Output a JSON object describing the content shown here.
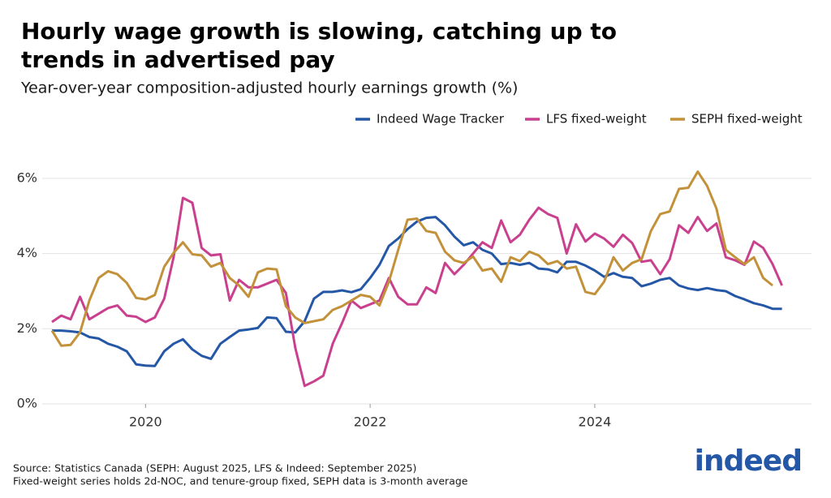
{
  "chart_data": {
    "type": "line",
    "title": "Hourly wage growth is slowing, catching up to",
    "title_line2": "trends in advertised pay",
    "subtitle": "Year-over-year composition-adjusted hourly earnings growth (%)",
    "source": "Source: Statistics Canada (SEPH: August 2025, LFS & Indeed: September 2025)",
    "note": "Fixed-weight series holds 2d-NOC, and tenure-group fixed, SEPH  data is 3-month average",
    "logo": "indeed",
    "x": [
      2019.167,
      2019.25,
      2019.333,
      2019.417,
      2019.5,
      2019.583,
      2019.667,
      2019.75,
      2019.833,
      2019.917,
      2020.0,
      2020.083,
      2020.167,
      2020.25,
      2020.333,
      2020.417,
      2020.5,
      2020.583,
      2020.667,
      2020.75,
      2020.833,
      2020.917,
      2021.0,
      2021.083,
      2021.167,
      2021.25,
      2021.333,
      2021.417,
      2021.5,
      2021.583,
      2021.667,
      2021.75,
      2021.833,
      2021.917,
      2022.0,
      2022.083,
      2022.167,
      2022.25,
      2022.333,
      2022.417,
      2022.5,
      2022.583,
      2022.667,
      2022.75,
      2022.833,
      2022.917,
      2023.0,
      2023.083,
      2023.167,
      2023.25,
      2023.333,
      2023.417,
      2023.5,
      2023.583,
      2023.667,
      2023.75,
      2023.833,
      2023.917,
      2024.0,
      2024.083,
      2024.167,
      2024.25,
      2024.333,
      2024.417,
      2024.5,
      2024.583,
      2024.667,
      2024.75,
      2024.833,
      2024.917,
      2025.0,
      2025.083,
      2025.167,
      2025.25,
      2025.333,
      2025.417,
      2025.5,
      2025.583,
      2025.667
    ],
    "series": [
      {
        "name": "Indeed Wage Tracker",
        "color": "#2557a7",
        "values": [
          1.95,
          1.95,
          1.93,
          1.9,
          1.78,
          1.74,
          1.6,
          1.52,
          1.4,
          1.05,
          1.02,
          1.01,
          1.4,
          1.6,
          1.72,
          1.45,
          1.28,
          1.2,
          1.6,
          1.78,
          1.95,
          1.98,
          2.02,
          2.3,
          2.28,
          1.92,
          1.9,
          2.2,
          2.8,
          2.98,
          2.98,
          3.02,
          2.97,
          3.05,
          3.35,
          3.7,
          4.2,
          4.4,
          4.65,
          4.85,
          4.95,
          4.97,
          4.75,
          4.45,
          4.22,
          4.3,
          4.1,
          4.0,
          3.72,
          3.75,
          3.7,
          3.75,
          3.6,
          3.58,
          3.5,
          3.78,
          3.78,
          3.68,
          3.55,
          3.38,
          3.48,
          3.38,
          3.35,
          3.13,
          3.2,
          3.3,
          3.35,
          3.15,
          3.07,
          3.03,
          3.08,
          3.03,
          3.0,
          2.87,
          2.78,
          2.68,
          2.62,
          2.53,
          2.53
        ]
      },
      {
        "name": "LFS fixed-weight",
        "color": "#c9408e",
        "values": [
          2.18,
          2.35,
          2.25,
          2.85,
          2.25,
          2.4,
          2.55,
          2.62,
          2.35,
          2.32,
          2.18,
          2.3,
          2.8,
          3.9,
          5.48,
          5.35,
          4.15,
          3.95,
          3.98,
          2.75,
          3.3,
          3.1,
          3.1,
          3.2,
          3.3,
          2.95,
          1.5,
          0.48,
          0.6,
          0.75,
          1.6,
          2.15,
          2.75,
          2.55,
          2.65,
          2.75,
          3.35,
          2.85,
          2.65,
          2.65,
          3.1,
          2.95,
          3.75,
          3.45,
          3.7,
          4.0,
          4.3,
          4.15,
          4.88,
          4.3,
          4.5,
          4.9,
          5.22,
          5.05,
          4.95,
          4.0,
          4.78,
          4.32,
          4.53,
          4.4,
          4.18,
          4.5,
          4.28,
          3.78,
          3.82,
          3.45,
          3.85,
          4.75,
          4.55,
          4.97,
          4.6,
          4.8,
          3.9,
          3.82,
          3.7,
          4.32,
          4.15,
          3.72,
          3.15
        ]
      },
      {
        "name": "SEPH fixed-weight",
        "color": "#c2913a",
        "values": [
          1.95,
          1.55,
          1.57,
          1.9,
          2.75,
          3.35,
          3.53,
          3.45,
          3.22,
          2.82,
          2.78,
          2.9,
          3.65,
          4.02,
          4.3,
          3.98,
          3.95,
          3.65,
          3.75,
          3.35,
          3.15,
          2.85,
          3.5,
          3.6,
          3.58,
          2.6,
          2.3,
          2.15,
          2.2,
          2.25,
          2.5,
          2.6,
          2.75,
          2.9,
          2.85,
          2.62,
          3.25,
          4.1,
          4.9,
          4.93,
          4.6,
          4.55,
          4.05,
          3.82,
          3.75,
          3.92,
          3.55,
          3.6,
          3.25,
          3.9,
          3.8,
          4.05,
          3.95,
          3.72,
          3.8,
          3.6,
          3.65,
          2.98,
          2.92,
          3.25,
          3.9,
          3.55,
          3.75,
          3.85,
          4.6,
          5.05,
          5.12,
          5.72,
          5.75,
          6.18,
          5.8,
          5.2,
          4.1,
          3.9,
          3.72,
          3.9,
          3.35,
          3.15,
          null
        ]
      }
    ],
    "xlim": [
      2019.08,
      2025.93
    ],
    "xticks": [
      2020,
      2022,
      2024
    ],
    "ylim": [
      0,
      6.3
    ],
    "yticks": [
      {
        "value": 0,
        "label": "0%"
      },
      {
        "value": 2,
        "label": "2%"
      },
      {
        "value": 4,
        "label": "4%"
      },
      {
        "value": 6,
        "label": "6%"
      }
    ],
    "grid": true,
    "legend": "top-right"
  }
}
